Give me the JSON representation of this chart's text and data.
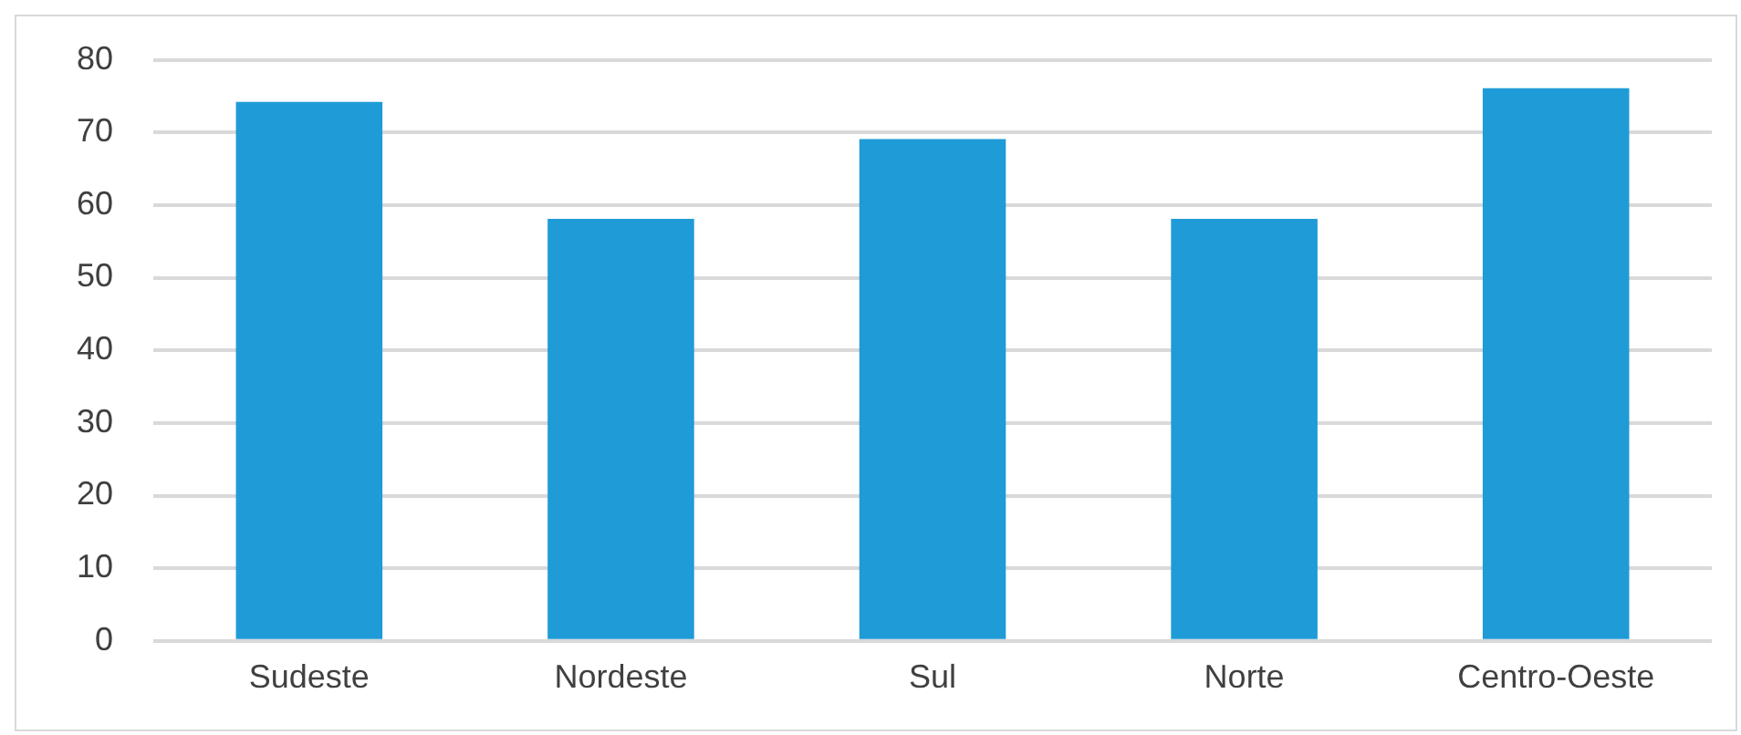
{
  "chart_data": {
    "type": "bar",
    "categories": [
      "Sudeste",
      "Nordeste",
      "Sul",
      "Norte",
      "Centro-Oeste"
    ],
    "values": [
      74.2,
      58.1,
      69.1,
      58.1,
      76.1
    ],
    "color": "#1f9bd7",
    "ylim": [
      0,
      80
    ],
    "yticks": [
      0,
      10,
      20,
      30,
      40,
      50,
      60,
      70,
      80
    ],
    "grid": "y",
    "legend": false
  }
}
